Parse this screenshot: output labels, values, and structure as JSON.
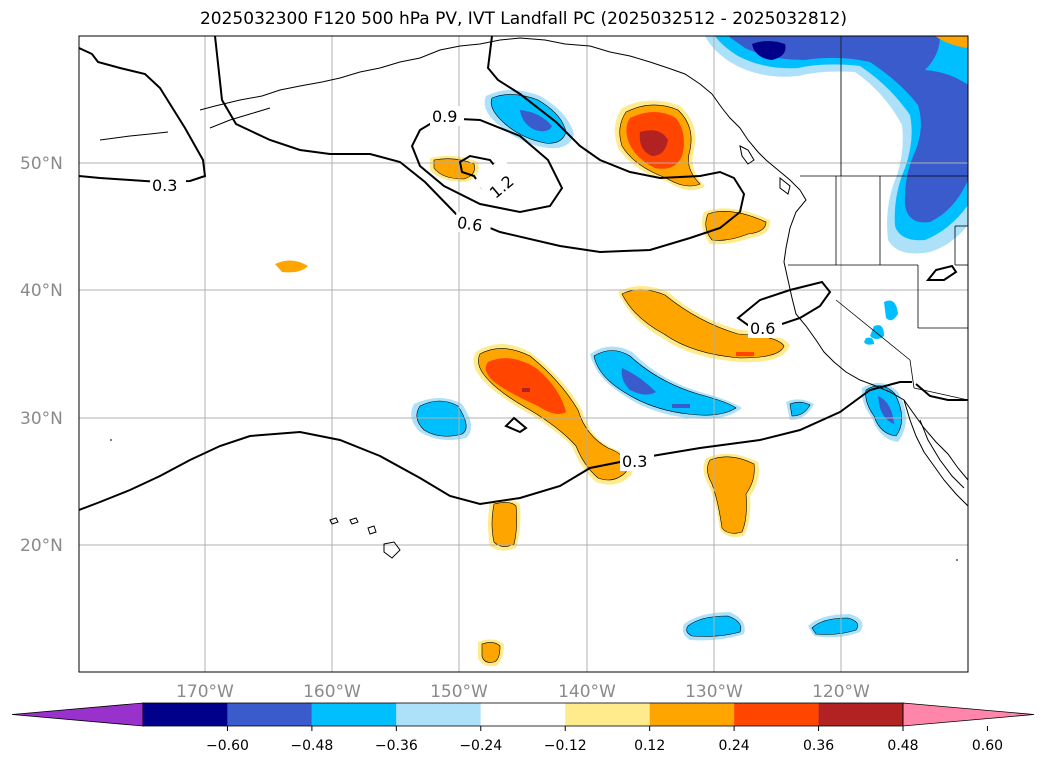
{
  "title": "2025032300 F120 500 hPa PV, IVT Landfall PC (2025032512 - 2025032812)",
  "map": {
    "lat_labels": [
      "50°N",
      "40°N",
      "30°N",
      "20°N"
    ],
    "lon_labels": [
      "170°W",
      "160°W",
      "150°W",
      "140°W",
      "130°W",
      "120°W"
    ],
    "contour_labels": [
      "0.9",
      "1.2",
      "0.3",
      "0.6",
      "0.6",
      "0.3"
    ],
    "grid": true
  },
  "colorbar": {
    "ticks": [
      "−0.60",
      "−0.48",
      "−0.36",
      "−0.24",
      "−0.12",
      "0.12",
      "0.24",
      "0.36",
      "0.48",
      "0.60"
    ],
    "colors": [
      "#9932CC",
      "#00008B",
      "#3A5BCB",
      "#00BFFF",
      "#ADE1FA",
      "#FFFFFF",
      "#FFEB8C",
      "#FFA500",
      "#FF4500",
      "#B22222",
      "#FF85AA"
    ]
  },
  "colors": {
    "very_light_blue": "#ADE1FA",
    "light_blue": "#00BFFF",
    "mid_blue": "#3A5BCB",
    "dark_blue": "#00008B",
    "light_yellow": "#FFEB8C",
    "orange": "#FFA500",
    "red_orange": "#FF4500",
    "dark_red": "#B22222"
  }
}
